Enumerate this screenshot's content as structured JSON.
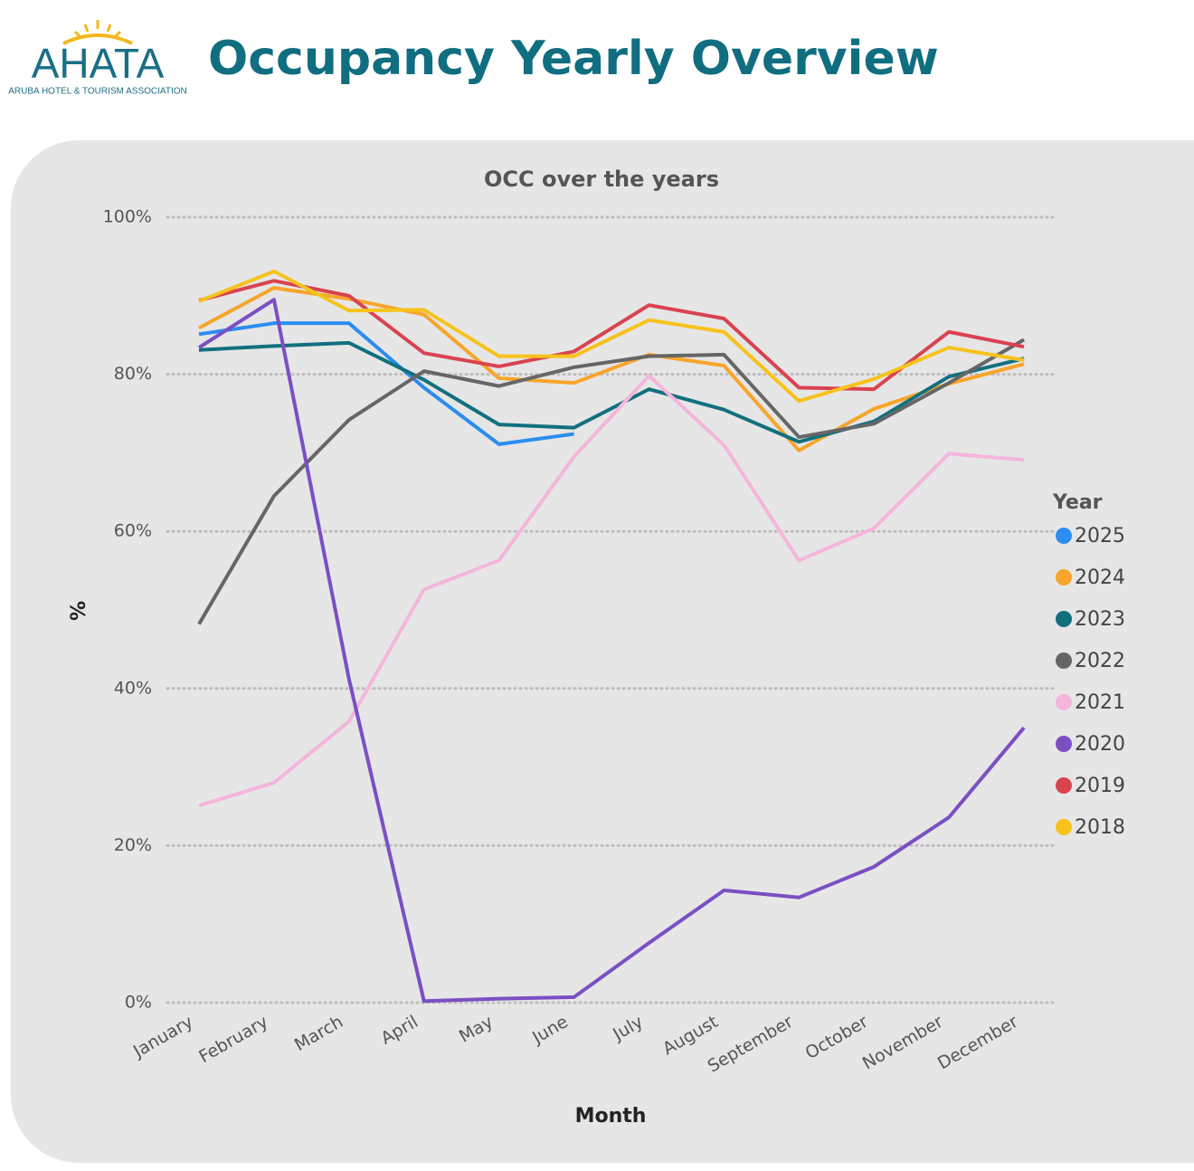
{
  "header": {
    "logo": "AHATA",
    "logo_subtitle": "ARUBA HOTEL & TOURISM ASSOCIATION",
    "title": "Occupancy Yearly Overview"
  },
  "chart_data": {
    "type": "line",
    "title": "OCC over the years",
    "x_label": "Month",
    "y_label": "%",
    "legend_title": "Year",
    "legend_position": "right",
    "grid": true,
    "categories": [
      "January",
      "February",
      "March",
      "April",
      "May",
      "June",
      "July",
      "August",
      "September",
      "October",
      "November",
      "December"
    ],
    "ylim": [
      0,
      100
    ],
    "yticks": [
      {
        "value": 0,
        "label": "0%"
      },
      {
        "value": 20,
        "label": "20%"
      },
      {
        "value": 40,
        "label": "40%"
      },
      {
        "value": 60,
        "label": "60%"
      },
      {
        "value": 80,
        "label": "80%"
      },
      {
        "value": 100,
        "label": "100%"
      }
    ],
    "series": [
      {
        "name": "2025",
        "color": "#2b8df0",
        "values": [
          85.1,
          86.5,
          86.5,
          78.3,
          71.1,
          72.4,
          null,
          null,
          null,
          null,
          null,
          null
        ]
      },
      {
        "name": "2024",
        "color": "#f7a52b",
        "values": [
          85.9,
          91.0,
          89.6,
          87.6,
          79.5,
          78.9,
          82.5,
          81.1,
          70.3,
          75.6,
          78.8,
          81.3
        ]
      },
      {
        "name": "2023",
        "color": "#12707e",
        "values": [
          83.1,
          83.6,
          84.0,
          79.3,
          73.6,
          73.2,
          78.1,
          75.5,
          71.4,
          74.0,
          79.7,
          82.0
        ]
      },
      {
        "name": "2022",
        "color": "#666666",
        "values": [
          48.2,
          64.5,
          74.2,
          80.4,
          78.5,
          80.9,
          82.3,
          82.5,
          72.0,
          73.7,
          78.9,
          84.4
        ]
      },
      {
        "name": "2021",
        "color": "#f4b6dc",
        "values": [
          25.1,
          28.0,
          35.8,
          52.6,
          56.3,
          69.5,
          79.8,
          71.0,
          56.3,
          60.4,
          69.9,
          69.1
        ]
      },
      {
        "name": "2020",
        "color": "#7b4fc4",
        "values": [
          83.4,
          89.5,
          41.2,
          0.2,
          0.5,
          0.7,
          7.6,
          14.3,
          13.4,
          17.3,
          23.6,
          35.0
        ]
      },
      {
        "name": "2019",
        "color": "#d9434f",
        "values": [
          89.4,
          91.9,
          90.0,
          82.7,
          81.0,
          82.9,
          88.8,
          87.1,
          78.3,
          78.1,
          85.4,
          83.5
        ]
      },
      {
        "name": "2018",
        "color": "#f7c21b",
        "values": [
          89.3,
          93.1,
          88.1,
          88.2,
          82.3,
          82.3,
          86.9,
          85.4,
          76.6,
          79.4,
          83.4,
          81.8
        ]
      }
    ]
  }
}
